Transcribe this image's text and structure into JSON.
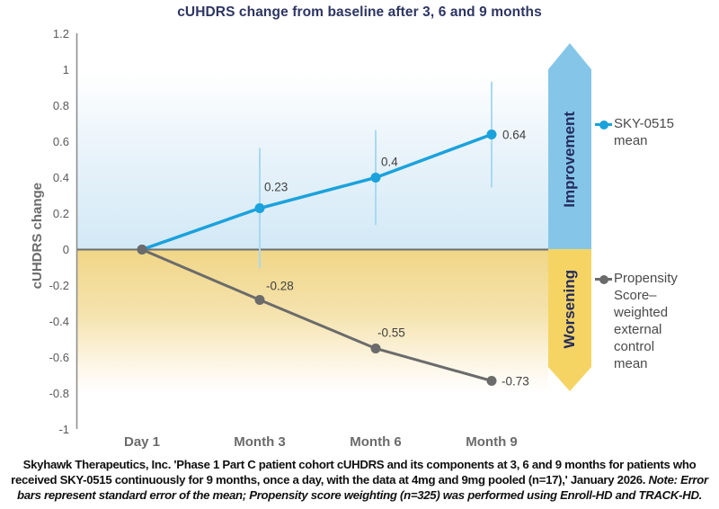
{
  "title": "cUHDRS change from baseline after 3, 6 and 9 months",
  "chart_data": {
    "type": "line",
    "title": "cUHDRS change from baseline after 3, 6 and 9 months",
    "xlabel": "",
    "ylabel": "cUHDRS change",
    "categories": [
      "Day 1",
      "Month 3",
      "Month 6",
      "Month 9"
    ],
    "ylim": [
      -1,
      1.2
    ],
    "ytick_values": [
      1.2,
      1,
      0.8,
      0.6,
      0.4,
      0.2,
      0,
      -0.2,
      -0.4,
      -0.6,
      -0.8,
      -1
    ],
    "ytick_labels": [
      "1.2",
      "1",
      "0.8",
      "0.6",
      "0.4",
      "0.2",
      "0",
      "-0.2",
      "-0.4",
      "-0.6",
      "-0.8",
      "-1"
    ],
    "grid": false,
    "legend_position": "right",
    "series": [
      {
        "name": "SKY-0515 mean",
        "color": "#1ba2dc",
        "marker": "circle",
        "values": [
          0,
          0.23,
          0.4,
          0.64
        ],
        "point_labels": [
          "",
          "0.23",
          "0.4",
          "0.64"
        ],
        "error_low": [
          null,
          -0.1,
          0.14,
          0.35
        ],
        "error_high": [
          null,
          0.56,
          0.66,
          0.93
        ],
        "error_color": "#a9d9f0"
      },
      {
        "name": "Propensity Score–weighted external control mean",
        "color": "#6b6b6b",
        "marker": "circle",
        "values": [
          0,
          -0.28,
          -0.55,
          -0.73
        ],
        "point_labels": [
          "",
          "-0.28",
          "-0.55",
          "-0.73"
        ]
      }
    ],
    "annotations": [
      {
        "text": "Improvement",
        "direction": "up",
        "color": "#85c6e8"
      },
      {
        "text": "Worsening",
        "direction": "down",
        "color": "#f5d464"
      }
    ]
  },
  "caption": {
    "text": "Skyhawk Therapeutics, Inc. 'Phase 1 Part C patient cohort cUHDRS and its components at 3, 6 and 9 months for patients who received SKY-0515 continuously for 9 months, once a day, with the data at 4mg and 9mg pooled (n=17),' January 2026. ",
    "note": "Note: Error bars represent standard error of the mean; Propensity score weighting (n=325) was performed using Enroll-HD and TRACK-HD."
  }
}
